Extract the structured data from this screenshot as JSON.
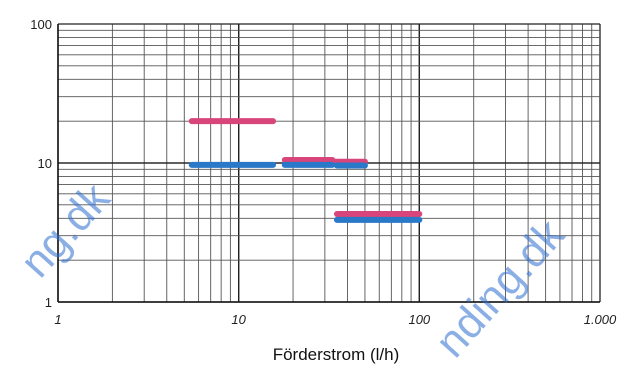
{
  "chart_data": {
    "type": "line",
    "title": "",
    "xlabel": "Förderstrom (l/h)",
    "ylabel": "",
    "xscale": "log",
    "yscale": "log",
    "xlim": [
      1,
      1000
    ],
    "ylim": [
      1,
      100
    ],
    "grid": true,
    "x_tick_labels": [
      "1",
      "10",
      "100",
      "1.000"
    ],
    "y_tick_labels": [
      "1",
      "10",
      "100"
    ],
    "series": [
      {
        "color": "#d8457a",
        "segments": [
          {
            "x": [
              5.5,
              15.5
            ],
            "y": [
              20,
              20
            ]
          },
          {
            "x": [
              18,
              33
            ],
            "y": [
              10.5,
              10.5
            ]
          },
          {
            "x": [
              33,
              50
            ],
            "y": [
              10.2,
              10.2
            ]
          },
          {
            "x": [
              35,
              100
            ],
            "y": [
              4.3,
              4.3
            ]
          }
        ]
      },
      {
        "color": "#2a78c8",
        "segments": [
          {
            "x": [
              5.5,
              15.5
            ],
            "y": [
              9.7,
              9.7
            ]
          },
          {
            "x": [
              18,
              33
            ],
            "y": [
              9.7,
              9.7
            ]
          },
          {
            "x": [
              35,
              50
            ],
            "y": [
              9.6,
              9.6
            ]
          },
          {
            "x": [
              35,
              100
            ],
            "y": [
              3.9,
              3.9
            ]
          }
        ]
      }
    ]
  },
  "watermark": {
    "left": "ng.dk",
    "right": "nding.dk"
  }
}
